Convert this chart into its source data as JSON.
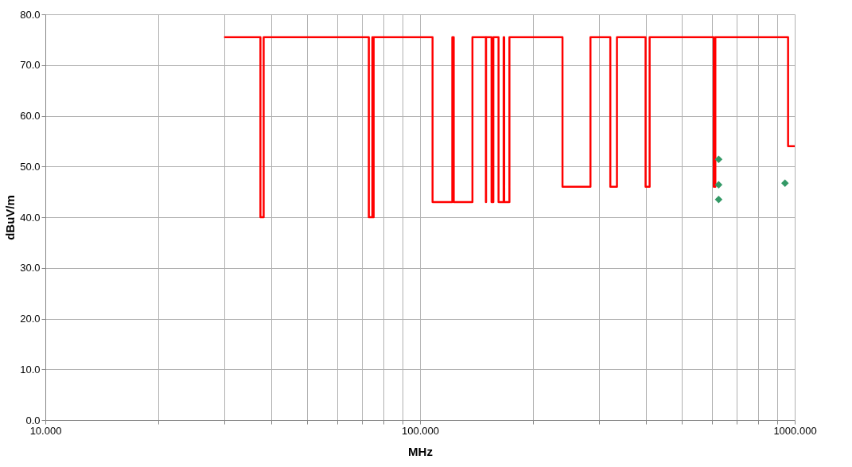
{
  "chart_data": {
    "type": "line",
    "xlabel": "MHz",
    "ylabel": "dBuV/m",
    "log": "x",
    "grid": true,
    "xlim": [
      10,
      1000
    ],
    "xticks": [
      {
        "value": 10,
        "label": "10.000"
      },
      {
        "value": 20,
        "label": null
      },
      {
        "value": 30,
        "label": null
      },
      {
        "value": 40,
        "label": null
      },
      {
        "value": 50,
        "label": null
      },
      {
        "value": 60,
        "label": null
      },
      {
        "value": 70,
        "label": null
      },
      {
        "value": 80,
        "label": null
      },
      {
        "value": 90,
        "label": null
      },
      {
        "value": 100,
        "label": "100.000"
      },
      {
        "value": 200,
        "label": null
      },
      {
        "value": 300,
        "label": null
      },
      {
        "value": 400,
        "label": null
      },
      {
        "value": 500,
        "label": null
      },
      {
        "value": 600,
        "label": null
      },
      {
        "value": 700,
        "label": null
      },
      {
        "value": 800,
        "label": null
      },
      {
        "value": 900,
        "label": null
      },
      {
        "value": 1000,
        "label": "1000.000"
      }
    ],
    "ylim": [
      0,
      80
    ],
    "yticks": [
      {
        "value": 0,
        "label": "0.0"
      },
      {
        "value": 10,
        "label": "10.0"
      },
      {
        "value": 20,
        "label": "20.0"
      },
      {
        "value": 30,
        "label": "30.0"
      },
      {
        "value": 40,
        "label": "40.0"
      },
      {
        "value": 50,
        "label": "50.0"
      },
      {
        "value": 60,
        "label": "60.0"
      },
      {
        "value": 70,
        "label": "70.0"
      },
      {
        "value": 80,
        "label": "80.0"
      }
    ],
    "series": [
      {
        "type": "line",
        "color": "#ff0000",
        "marker": "none",
        "line_style": "solid",
        "x": [
          30,
          37.5,
          37.5,
          38.25,
          38.25,
          73,
          73,
          74.6,
          74.6,
          74.8,
          74.8,
          75.2,
          75.2,
          108,
          108,
          121.94,
          121.94,
          123,
          123,
          138,
          138,
          149.9,
          149.9,
          150.05,
          150.05,
          155.2,
          155.2,
          156.9,
          156.9,
          162,
          162,
          167.17,
          167.17,
          167.72,
          167.72,
          173.2,
          173.2,
          240,
          240,
          285,
          285,
          322,
          322,
          335.4,
          335.4,
          399.9,
          399.9,
          410,
          410,
          608,
          608,
          614,
          614,
          960,
          960,
          1000
        ],
        "values": [
          75.5,
          75.5,
          40,
          40,
          75.5,
          75.5,
          40,
          40,
          75.5,
          75.5,
          40,
          40,
          75.5,
          75.5,
          43,
          43,
          75.5,
          75.5,
          43,
          43,
          75.5,
          75.5,
          43,
          43,
          75.5,
          75.5,
          43,
          43,
          75.5,
          75.5,
          43,
          43,
          75.5,
          75.5,
          43,
          43,
          75.5,
          75.5,
          46,
          46,
          75.5,
          75.5,
          46,
          46,
          75.5,
          75.5,
          46,
          46,
          75.5,
          75.5,
          46,
          46,
          75.5,
          75.5,
          54,
          54
        ]
      },
      {
        "type": "scatter",
        "color": "#339966",
        "marker": "diamond",
        "x": [
          626.6,
          626.6,
          626.6,
          942
        ],
        "values": [
          51.4,
          46.4,
          43.5,
          46.7
        ]
      }
    ]
  }
}
